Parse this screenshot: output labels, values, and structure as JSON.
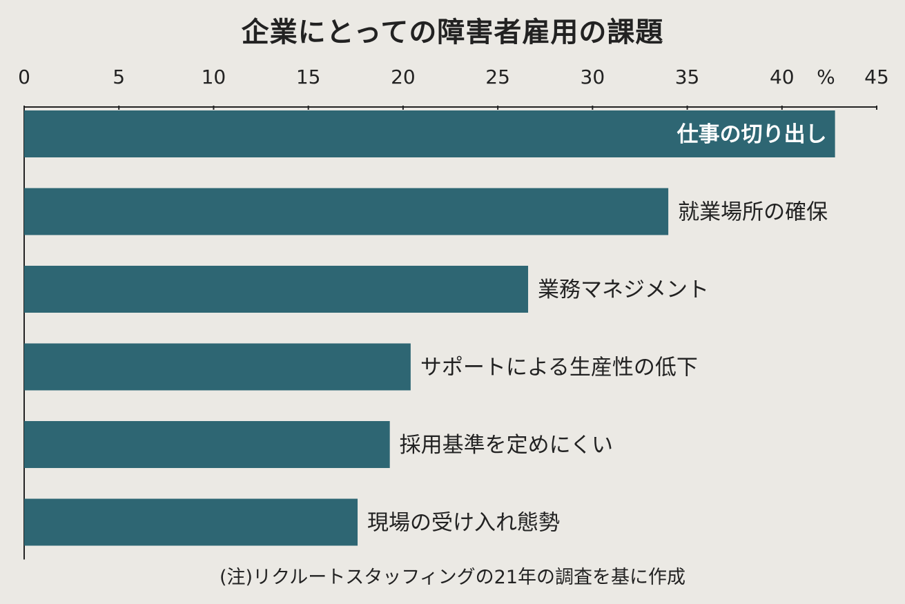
{
  "chart_data": {
    "type": "bar",
    "orientation": "horizontal",
    "title": "企業にとっての障害者雇用の課題",
    "unit_label": "%",
    "xlim": [
      0,
      45
    ],
    "ticks": [
      0,
      5,
      10,
      15,
      20,
      25,
      30,
      35,
      40,
      45
    ],
    "grid": false,
    "categories": [
      "仕事の切り出し",
      "就業場所の確保",
      "業務マネジメント",
      "サポートによる生産性の低下",
      "採用基準を定めにくい",
      "現場の受け入れ態勢"
    ],
    "values": [
      42.8,
      34.0,
      26.6,
      20.4,
      19.3,
      17.6
    ],
    "bar_color": "#2e6673",
    "note": "(注)リクルートスタッフィングの21年の調査を基に作成"
  }
}
